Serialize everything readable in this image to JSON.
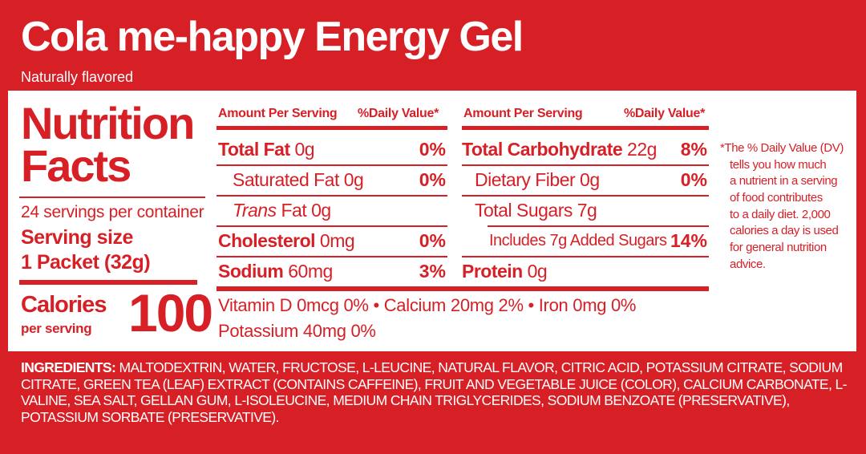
{
  "header": {
    "title": "Cola me-happy Energy Gel",
    "subtitle": "Naturally flavored"
  },
  "facts": {
    "title_line1": "Nutrition",
    "title_line2": "Facts",
    "servings": "24 servings per container",
    "serving_size_label": "Serving size",
    "serving_size_value": "1 Packet (32g)",
    "calories_label": "Calories",
    "calories_per": "per serving",
    "calories_value": "100"
  },
  "col_headers": {
    "amount": "Amount Per Serving",
    "dv": "%Daily Value*"
  },
  "left_rows": [
    {
      "name": "Total Fat",
      "amount": "0g",
      "dv": "0%"
    },
    {
      "name": "Saturated Fat",
      "amount": "0g",
      "dv": "0%"
    },
    {
      "name": "Trans",
      "name2": "Fat",
      "amount": "0g",
      "dv": ""
    },
    {
      "name": "Cholesterol",
      "amount": "0mg",
      "dv": "0%"
    },
    {
      "name": "Sodium",
      "amount": "60mg",
      "dv": "3%"
    }
  ],
  "right_rows": [
    {
      "name": "Total Carbohydrate",
      "amount": "22g",
      "dv": "8%"
    },
    {
      "name": "Dietary Fiber",
      "amount": "0g",
      "dv": "0%"
    },
    {
      "name": "Total Sugars",
      "amount": "7g",
      "dv": ""
    },
    {
      "name": "Includes 7g Added Sugars",
      "amount": "",
      "dv": "14%"
    },
    {
      "name": "Protein",
      "amount": "0g",
      "dv": ""
    }
  ],
  "vitamins_line1": "Vitamin D 0mcg 0% • Calcium 20mg 2% • Iron 0mg 0%",
  "vitamins_line2": "Potassium 40mg 0%",
  "footnote": {
    "line1": "*The % Daily Value (DV)",
    "line2": "tells you how much",
    "line3": "a nutrient in a serving",
    "line4": "of food contributes",
    "line5": "to a daily diet. 2,000",
    "line6": "calories a day is used",
    "line7": "for general nutrition",
    "line8": "advice."
  },
  "ingredients": {
    "label": "INGREDIENTS:",
    "text": " MALTODEXTRIN, WATER, FRUCTOSE, L-LEUCINE, NATURAL FLAVOR, CITRIC ACID, POTASSIUM CITRATE, SODIUM CITRATE, GREEN TEA (LEAF) EXTRACT (CONTAINS CAFFEINE), FRUIT AND VEGETABLE JUICE (COLOR), CALCIUM CARBONATE, L-VALINE, SEA SALT, GELLAN GUM, L-ISOLEUCINE, MEDIUM CHAIN TRIGLYCERIDES, SODIUM BENZOATE (PRESERVATIVE), POTASSIUM SORBATE (PRESERVATIVE)."
  },
  "colors": {
    "brand_red": "#d71f26",
    "panel_white": "#ffffff"
  }
}
